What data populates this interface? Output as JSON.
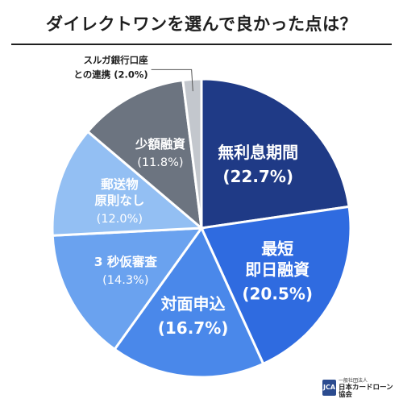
{
  "header": {
    "title": "ダイレクトワンを選んで良かった点は？"
  },
  "chart_data": {
    "type": "pie",
    "title": "ダイレクトワンを選んで良かった点は？",
    "start": "12 o'clock, clockwise",
    "slices": [
      {
        "label_lines": [
          "無利息期間"
        ],
        "value": 22.7,
        "value_text": "(22.7%)",
        "color": "#1f3a86",
        "label_color": "#ffffff"
      },
      {
        "label_lines": [
          "最短",
          "即日融資"
        ],
        "value": 20.5,
        "value_text": "(20.5%)",
        "color": "#2f6be0",
        "label_color": "#ffffff"
      },
      {
        "label_lines": [
          "対面申込"
        ],
        "value": 16.7,
        "value_text": "(16.7%)",
        "color": "#4a88ea",
        "label_color": "#ffffff"
      },
      {
        "label_lines": [
          "3 秒仮審査"
        ],
        "value": 14.3,
        "value_text": "(14.3%)",
        "color": "#6aa2ef",
        "label_color": "#ffffff"
      },
      {
        "label_lines": [
          "郵送物",
          "原則なし"
        ],
        "value": 12.0,
        "value_text": "(12.0%)",
        "color": "#93bff3",
        "label_color": "#ffffff"
      },
      {
        "label_lines": [
          "少額融資"
        ],
        "value": 11.8,
        "value_text": "(11.8%)",
        "color": "#6c7480",
        "label_color": "#ffffff"
      },
      {
        "label_lines": [
          "スルガ銀行口座",
          "との連携 (2.0%)"
        ],
        "value": 2.0,
        "value_text": "",
        "color": "#c3c7cd",
        "label_color": "#1f1f1f",
        "outside": true
      }
    ]
  },
  "footer": {
    "logo_mark": "JCA",
    "logo_sub": "一般社団法人",
    "logo_main": "日本カードローン協会"
  }
}
